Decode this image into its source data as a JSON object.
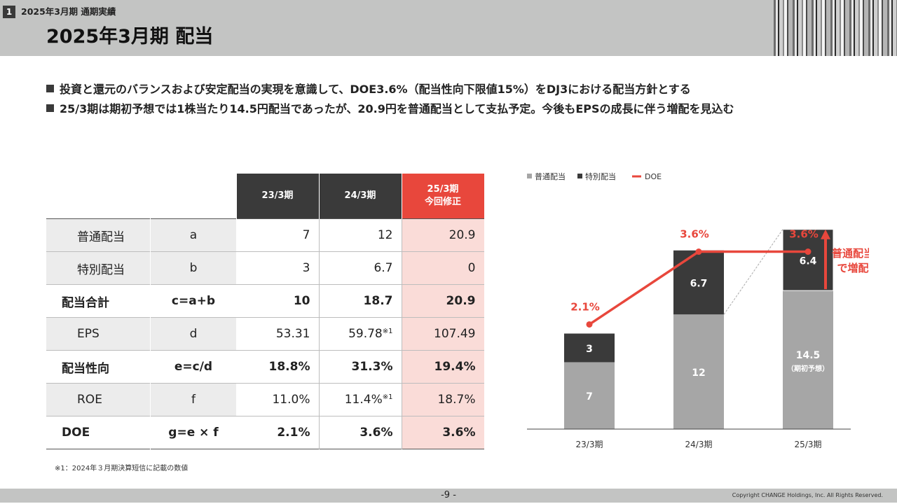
{
  "header": {
    "section_number": "1",
    "section_label": "2025年3月期 通期実績",
    "title": "2025年3月期 配当"
  },
  "bullets": [
    "投資と還元のバランスおよび安定配当の実現を意識して、DOE3.6%（配当性向下限値15%）をDJ3における配当方針とする",
    "25/3期は期初予想では1株当たり14.5円配当であったが、20.9円を普通配当として支払予定。今後もEPSの成長に伴う増配を見込む"
  ],
  "table": {
    "headers": [
      "23/3期",
      "24/3期",
      "25/3期",
      "今回修正"
    ],
    "rows": [
      {
        "name": "普通配当",
        "sym": "a",
        "v1": "7",
        "v2": "12",
        "v3": "20.9",
        "v2_note": ""
      },
      {
        "name": "特別配当",
        "sym": "b",
        "v1": "3",
        "v2": "6.7",
        "v3": "0",
        "v2_note": ""
      },
      {
        "name": "配当合計",
        "sym": "c=a+b",
        "v1": "10",
        "v2": "18.7",
        "v3": "20.9",
        "v2_note": ""
      },
      {
        "name": "EPS",
        "sym": "d",
        "v1": "53.31",
        "v2": "59.78",
        "v3": "107.49",
        "v2_note": "※1"
      },
      {
        "name": "配当性向",
        "sym": "e=c/d",
        "v1": "18.8%",
        "v2": "31.3%",
        "v3": "19.4%",
        "v2_note": ""
      },
      {
        "name": "ROE",
        "sym": "f",
        "v1": "11.0%",
        "v2": "11.4%",
        "v3": "18.7%",
        "v2_note": "※1"
      },
      {
        "name": "DOE",
        "sym": "g=e × f",
        "v1": "2.1%",
        "v2": "3.6%",
        "v3": "3.6%",
        "v2_note": ""
      }
    ]
  },
  "footnote": "※1：2024年３月期決算短信に記載の数値",
  "chart_data": {
    "type": "bar",
    "categories": [
      "23/3期",
      "24/3期",
      "25/3期"
    ],
    "series": [
      {
        "name": "普通配当",
        "values": [
          7,
          12,
          14.5
        ],
        "color": "#a6a6a6"
      },
      {
        "name": "特別配当",
        "values": [
          3,
          6.7,
          6.4
        ],
        "color": "#3a3a3a"
      }
    ],
    "bar_labels": [
      {
        "bottom": "7",
        "top": "3"
      },
      {
        "bottom": "12",
        "top": "6.7"
      },
      {
        "bottom": "14.5",
        "bottom_sub": "（期初予想）",
        "top": "6.4"
      }
    ],
    "line": {
      "name": "DOE",
      "values": [
        2.1,
        3.6,
        3.6
      ],
      "labels": [
        "2.1%",
        "3.6%",
        "3.6%"
      ],
      "color": "#e8473c"
    },
    "legend": [
      "普通配当",
      "特別配当",
      "DOE"
    ],
    "annotation": [
      "普通配当",
      "で増配"
    ],
    "ylim": [
      0,
      21
    ]
  },
  "footer": {
    "page": "-9 -",
    "copyright": "Copyright CHANGE Holdings, Inc. All Rights Reserved."
  }
}
